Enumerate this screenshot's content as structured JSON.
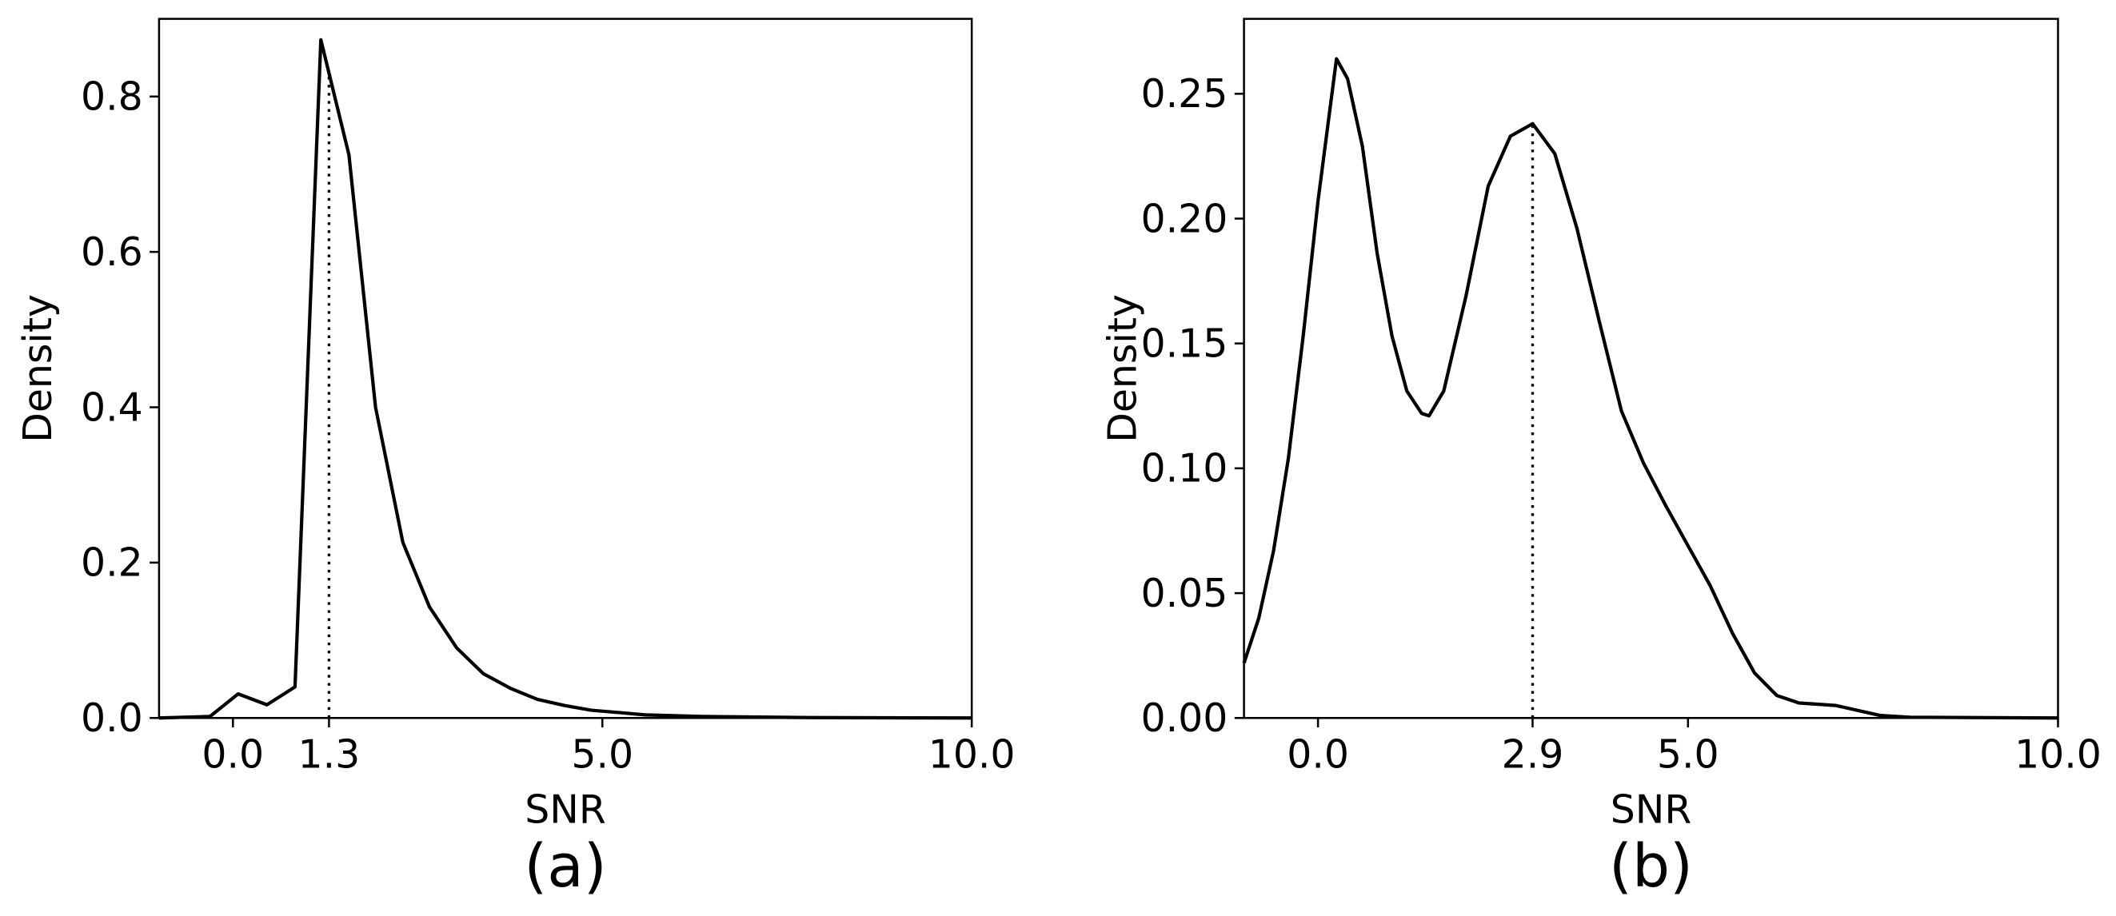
{
  "chart_data": [
    {
      "type": "line",
      "caption": "(a)",
      "xlabel": "SNR",
      "ylabel": "Density",
      "color": "#000000",
      "xlim": [
        -1,
        10
      ],
      "ylim": [
        0,
        0.9
      ],
      "xticks": [
        {
          "value": 0,
          "label": "0.0"
        },
        {
          "value": 1.3,
          "label": "1.3"
        },
        {
          "value": 5,
          "label": "5.0"
        },
        {
          "value": 10,
          "label": "10.0"
        }
      ],
      "yticks": [
        {
          "value": 0,
          "label": "0.0"
        },
        {
          "value": 0.2,
          "label": "0.2"
        },
        {
          "value": 0.4,
          "label": "0.4"
        },
        {
          "value": 0.6,
          "label": "0.6"
        },
        {
          "value": 0.8,
          "label": "0.8"
        }
      ],
      "marker_tick": 1,
      "x": [
        -1,
        -0.31,
        0.07,
        0.46,
        0.84,
        1.19,
        1.57,
        1.93,
        2.3,
        2.66,
        3.03,
        3.39,
        3.76,
        4.12,
        4.49,
        4.85,
        5.22,
        5.58,
        6.35,
        7.8,
        10
      ],
      "values": [
        0,
        0.002,
        0.031,
        0.017,
        0.04,
        0.873,
        0.725,
        0.4,
        0.226,
        0.143,
        0.09,
        0.057,
        0.038,
        0.024,
        0.016,
        0.01,
        0.007,
        0.004,
        0.002,
        0.0005,
        0
      ]
    },
    {
      "type": "line",
      "caption": "(b)",
      "xlabel": "SNR",
      "ylabel": "Density",
      "color": "#000000",
      "xlim": [
        -1,
        10
      ],
      "ylim": [
        0,
        0.28
      ],
      "xticks": [
        {
          "value": 0,
          "label": "0.0"
        },
        {
          "value": 2.9,
          "label": "2.9"
        },
        {
          "value": 5,
          "label": "5.0"
        },
        {
          "value": 10,
          "label": "10.0"
        }
      ],
      "yticks": [
        {
          "value": 0,
          "label": "0.00"
        },
        {
          "value": 0.05,
          "label": "0.05"
        },
        {
          "value": 0.1,
          "label": "0.10"
        },
        {
          "value": 0.15,
          "label": "0.15"
        },
        {
          "value": 0.2,
          "label": "0.20"
        },
        {
          "value": 0.25,
          "label": "0.25"
        }
      ],
      "marker_tick": 1,
      "x": [
        -1,
        -0.8,
        -0.6,
        -0.4,
        -0.2,
        0,
        0.25,
        0.4,
        0.6,
        0.8,
        1,
        1.2,
        1.4,
        1.5,
        1.7,
        2,
        2.3,
        2.6,
        2.9,
        3.2,
        3.5,
        3.8,
        4.1,
        4.4,
        4.7,
        5,
        5.3,
        5.6,
        5.9,
        6.2,
        6.5,
        7,
        7.3,
        7.6,
        8,
        10
      ],
      "values": [
        0.022,
        0.04,
        0.067,
        0.104,
        0.153,
        0.207,
        0.264,
        0.256,
        0.229,
        0.186,
        0.153,
        0.131,
        0.122,
        0.121,
        0.131,
        0.169,
        0.213,
        0.233,
        0.238,
        0.226,
        0.196,
        0.159,
        0.123,
        0.102,
        0.085,
        0.069,
        0.053,
        0.034,
        0.018,
        0.009,
        0.006,
        0.005,
        0.003,
        0.001,
        0.0003,
        0
      ]
    }
  ]
}
